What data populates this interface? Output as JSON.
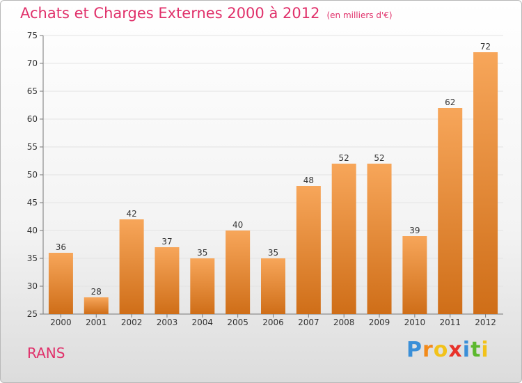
{
  "title": "Achats et Charges Externes 2000 à 2012",
  "subtitle": "(en milliers d'€)",
  "city": "RANS",
  "logo": {
    "letters": [
      "P",
      "r",
      "o",
      "x",
      "i",
      "t",
      "i"
    ],
    "colors": [
      "#3a8fd8",
      "#f28a1a",
      "#f2c21a",
      "#e8322a",
      "#3a8fd8",
      "#5cb82e",
      "#f2c21a"
    ]
  },
  "colors": {
    "bar_light": "#f7a65a",
    "bar_dark": "#cf6e18",
    "title": "#e0306a"
  },
  "chart_data": {
    "type": "bar",
    "categories": [
      "2000",
      "2001",
      "2002",
      "2003",
      "2004",
      "2005",
      "2006",
      "2007",
      "2008",
      "2009",
      "2010",
      "2011",
      "2012"
    ],
    "values": [
      36,
      28,
      42,
      37,
      35,
      40,
      35,
      48,
      52,
      52,
      39,
      62,
      72
    ],
    "data_labels": [
      "36",
      "28",
      "42",
      "37",
      "35",
      "40",
      "35",
      "48",
      "52",
      "52",
      "39",
      "62",
      "72"
    ],
    "yticks": [
      "25",
      "30",
      "35",
      "40",
      "45",
      "50",
      "55",
      "60",
      "65",
      "70",
      "75"
    ],
    "ylim": [
      25,
      75
    ],
    "grid": true,
    "title": "Achats et Charges Externes 2000 à 2012",
    "xlabel": "",
    "ylabel": ""
  }
}
